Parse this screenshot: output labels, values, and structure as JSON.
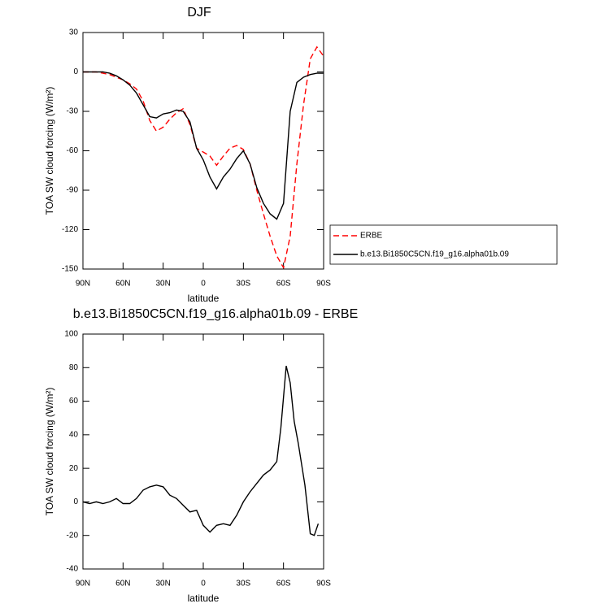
{
  "chart_data": [
    {
      "type": "line",
      "title": "DJF",
      "xlabel": "latitude",
      "ylabel": "TOA SW cloud forcing (W/m²)",
      "x": [
        90,
        85,
        80,
        75,
        70,
        65,
        60,
        55,
        50,
        45,
        40,
        35,
        30,
        25,
        20,
        15,
        10,
        5,
        0,
        -5,
        -10,
        -15,
        -20,
        -25,
        -30,
        -35,
        -40,
        -45,
        -50,
        -55,
        -60,
        -65,
        -70,
        -75,
        -80,
        -85,
        -90
      ],
      "series": [
        {
          "name": "ERBE",
          "color": "#ff0000",
          "dashed": true,
          "values": [
            0,
            0,
            0,
            -1,
            -2,
            -4,
            -6,
            -9,
            -13,
            -22,
            -37,
            -45,
            -42,
            -36,
            -31,
            -28,
            -40,
            -58,
            -61,
            -64,
            -71,
            -64,
            -58,
            -56,
            -59,
            -70,
            -90,
            -108,
            -125,
            -140,
            -149,
            -125,
            -70,
            -25,
            10,
            19,
            12
          ]
        },
        {
          "name": "b.e13.Bi1850C5CN.f19_g16.alpha01b.09",
          "color": "#000000",
          "dashed": false,
          "values": [
            0,
            0,
            0,
            0,
            -1,
            -3,
            -6,
            -10,
            -16,
            -25,
            -34,
            -35,
            -32,
            -31,
            -29,
            -30,
            -38,
            -58,
            -67,
            -80,
            -89,
            -80,
            -74,
            -66,
            -60,
            -70,
            -88,
            -100,
            -108,
            -112,
            -100,
            -30,
            -8,
            -4,
            -2,
            -1,
            -1
          ]
        }
      ],
      "xlim": [
        90,
        -90
      ],
      "xticks": [
        {
          "value": 90,
          "label": "90N"
        },
        {
          "value": 60,
          "label": "60N"
        },
        {
          "value": 30,
          "label": "30N"
        },
        0,
        {
          "value": -30,
          "label": "30S"
        },
        {
          "value": -60,
          "label": "60S"
        },
        {
          "value": -90,
          "label": "90S"
        }
      ],
      "ylim": [
        -150,
        30
      ],
      "yticks": [
        30,
        0,
        -30,
        -60,
        -90,
        -120,
        -150
      ],
      "legend": "right"
    },
    {
      "type": "line",
      "title": "b.e13.Bi1850C5CN.f19_g16.alpha01b.09 - ERBE",
      "xlabel": "latitude",
      "ylabel": "TOA SW cloud forcing (W/m²)",
      "x": [
        90,
        85,
        80,
        75,
        70,
        65,
        60,
        55,
        50,
        45,
        40,
        35,
        30,
        25,
        20,
        15,
        10,
        5,
        0,
        -5,
        -10,
        -15,
        -20,
        -25,
        -30,
        -35,
        -40,
        -45,
        -50,
        -55,
        -58,
        -62,
        -65,
        -68,
        -71,
        -76,
        -80,
        -83,
        -86
      ],
      "series": [
        {
          "color": "#000000",
          "dashed": false,
          "values": [
            0,
            -1,
            0,
            -1,
            0,
            2,
            -1,
            -1,
            2,
            7,
            9,
            10,
            9,
            4,
            2,
            -2,
            -6,
            -5,
            -14,
            -18,
            -14,
            -13,
            -14,
            -8,
            0,
            6,
            11,
            16,
            19,
            24,
            44,
            81,
            71,
            48,
            35,
            10,
            -19,
            -20,
            -13
          ]
        }
      ],
      "xlim": [
        90,
        -90
      ],
      "xticks": [
        {
          "value": 90,
          "label": "90N"
        },
        {
          "value": 60,
          "label": "60N"
        },
        {
          "value": 30,
          "label": "30N"
        },
        0,
        {
          "value": -30,
          "label": "30S"
        },
        {
          "value": -60,
          "label": "60S"
        },
        {
          "value": -90,
          "label": "90S"
        }
      ],
      "ylim": [
        -40,
        100
      ],
      "yticks": [
        100,
        80,
        60,
        40,
        20,
        0,
        -20,
        -40
      ]
    }
  ]
}
